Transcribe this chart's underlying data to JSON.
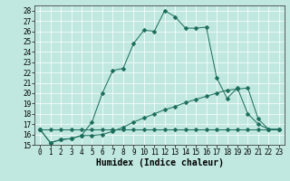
{
  "title": "",
  "xlabel": "Humidex (Indice chaleur)",
  "bg_color": "#c0e8e0",
  "line_color": "#1a6b5a",
  "xlim": [
    -0.5,
    23.5
  ],
  "ylim": [
    15,
    28.5
  ],
  "xticks": [
    0,
    1,
    2,
    3,
    4,
    5,
    6,
    7,
    8,
    9,
    10,
    11,
    12,
    13,
    14,
    15,
    16,
    17,
    18,
    19,
    20,
    21,
    22,
    23
  ],
  "yticks": [
    15,
    16,
    17,
    18,
    19,
    20,
    21,
    22,
    23,
    24,
    25,
    26,
    27,
    28
  ],
  "line1_x": [
    0,
    1,
    2,
    3,
    4,
    5,
    6,
    7,
    8,
    9,
    10,
    11,
    12,
    13,
    14,
    15,
    16,
    17,
    18,
    19,
    20,
    21,
    22,
    23
  ],
  "line1_y": [
    16.5,
    16.5,
    16.5,
    16.5,
    16.5,
    16.5,
    16.5,
    16.5,
    16.5,
    16.5,
    16.5,
    16.5,
    16.5,
    16.5,
    16.5,
    16.5,
    16.5,
    16.5,
    16.5,
    16.5,
    16.5,
    16.5,
    16.5,
    16.5
  ],
  "line2_x": [
    0,
    1,
    2,
    3,
    4,
    5,
    6,
    7,
    8,
    9,
    10,
    11,
    12,
    13,
    14,
    15,
    16,
    17,
    18,
    19,
    20,
    21,
    22,
    23
  ],
  "line2_y": [
    16.5,
    15.2,
    15.5,
    15.6,
    15.9,
    15.9,
    16.0,
    16.3,
    16.7,
    17.2,
    17.6,
    18.0,
    18.4,
    18.7,
    19.1,
    19.4,
    19.7,
    20.0,
    20.3,
    20.4,
    20.5,
    17.5,
    16.5,
    16.5
  ],
  "line3_x": [
    0,
    1,
    2,
    3,
    4,
    5,
    6,
    7,
    8,
    9,
    10,
    11,
    12,
    13,
    14,
    15,
    16,
    17,
    18,
    19,
    20,
    21,
    22,
    23
  ],
  "line3_y": [
    16.5,
    15.2,
    15.5,
    15.6,
    15.9,
    17.2,
    20.0,
    22.2,
    22.4,
    24.8,
    26.1,
    26.0,
    28.0,
    27.4,
    26.3,
    26.3,
    26.4,
    21.5,
    19.5,
    20.5,
    18.0,
    17.0,
    16.5,
    16.5
  ],
  "fontsize_label": 7,
  "fontsize_tick": 5.5,
  "markersize": 2.5
}
